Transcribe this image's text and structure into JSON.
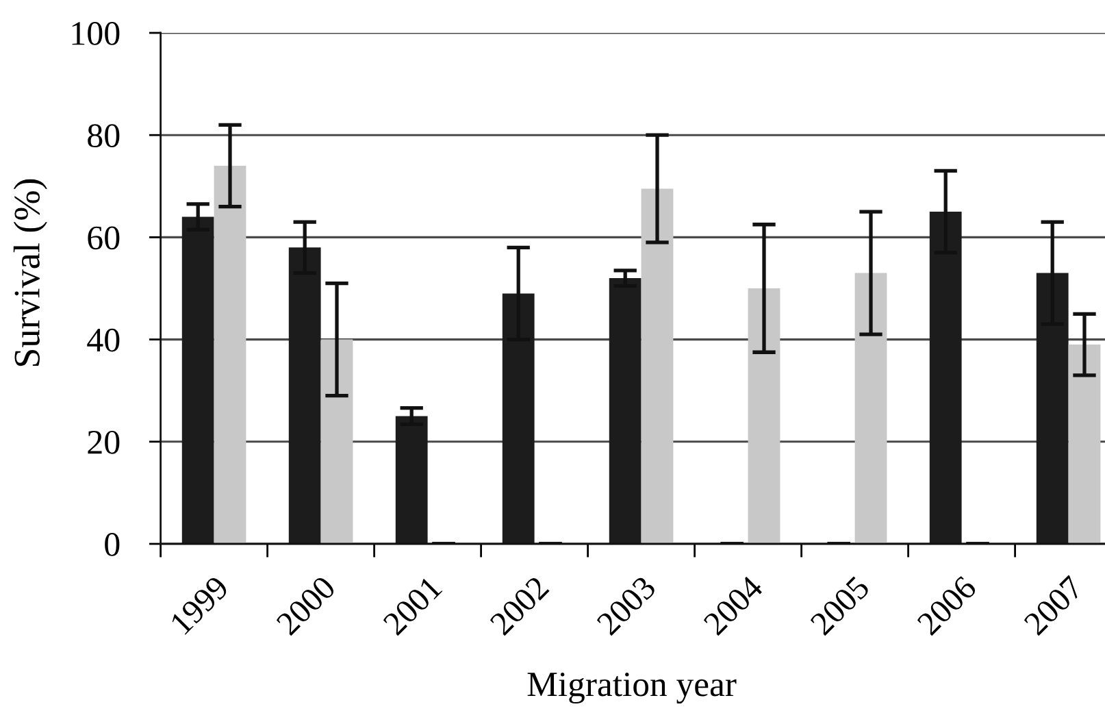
{
  "chart_data": {
    "type": "bar",
    "xlabel": "Migration year",
    "ylabel": "Survival (%)",
    "categories": [
      "1999",
      "2000",
      "2001",
      "2002",
      "2003",
      "2004",
      "2005",
      "2006",
      "2007"
    ],
    "series": [
      {
        "color": "#1c1c1c",
        "values": [
          64,
          58,
          25,
          49,
          52,
          0,
          0,
          65,
          53
        ],
        "errors": [
          2.5,
          5,
          1.6,
          9,
          1.5,
          0,
          0,
          8,
          10
        ]
      },
      {
        "color": "#c8c8c8",
        "values": [
          74,
          40,
          0,
          0,
          69.5,
          50,
          53,
          0,
          39
        ],
        "errors": [
          8,
          11,
          0,
          0,
          10.5,
          12.5,
          12,
          0,
          6
        ]
      }
    ],
    "ylim": [
      0,
      100
    ],
    "yticks": [
      0,
      20,
      40,
      60,
      80,
      100
    ],
    "grid": "y"
  }
}
